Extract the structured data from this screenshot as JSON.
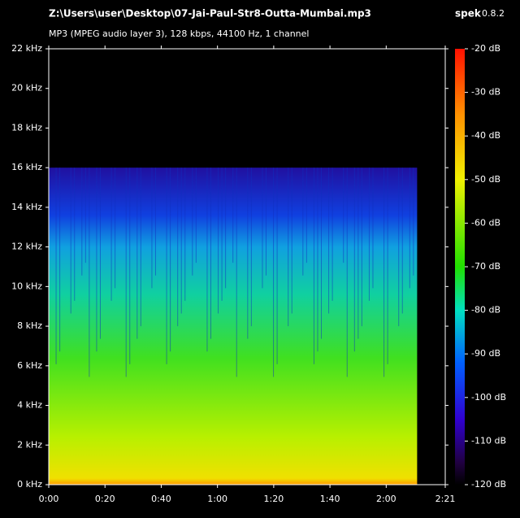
{
  "chart_data": {
    "type": "spectrogram",
    "title": "Z:\\Users\\user\\Desktop\\07-Jai-Paul-Str8-Outta-Mumbai.mp3",
    "subtitle": "MP3 (MPEG audio layer 3), 128 kbps, 44100 Hz, 1 channel",
    "app": "spek",
    "version": "0.8.2",
    "xlim": [
      0,
      141
    ],
    "xticks": [
      {
        "value": 0,
        "label": "0:00"
      },
      {
        "value": 20,
        "label": "0:20"
      },
      {
        "value": 40,
        "label": "0:40"
      },
      {
        "value": 60,
        "label": "1:00"
      },
      {
        "value": 80,
        "label": "1:20"
      },
      {
        "value": 100,
        "label": "1:40"
      },
      {
        "value": 120,
        "label": "2:00"
      },
      {
        "value": 141,
        "label": "2:21"
      }
    ],
    "ylim": [
      0,
      22
    ],
    "yticks": [
      {
        "value": 0,
        "label": "0 kHz"
      },
      {
        "value": 2,
        "label": "2 kHz"
      },
      {
        "value": 4,
        "label": "4 kHz"
      },
      {
        "value": 6,
        "label": "6 kHz"
      },
      {
        "value": 8,
        "label": "8 kHz"
      },
      {
        "value": 10,
        "label": "10 kHz"
      },
      {
        "value": 12,
        "label": "12 kHz"
      },
      {
        "value": 14,
        "label": "14 kHz"
      },
      {
        "value": 16,
        "label": "16 kHz"
      },
      {
        "value": 18,
        "label": "18 kHz"
      },
      {
        "value": 20,
        "label": "20 kHz"
      },
      {
        "value": 22,
        "label": "22 kHz"
      }
    ],
    "zlim": [
      -120,
      -20
    ],
    "zticks": [
      {
        "value": -20,
        "label": "-20 dB"
      },
      {
        "value": -30,
        "label": "-30 dB"
      },
      {
        "value": -40,
        "label": "-40 dB"
      },
      {
        "value": -50,
        "label": "-50 dB"
      },
      {
        "value": -60,
        "label": "-60 dB"
      },
      {
        "value": -70,
        "label": "-70 dB"
      },
      {
        "value": -80,
        "label": "-80 dB"
      },
      {
        "value": -90,
        "label": "-90 dB"
      },
      {
        "value": -100,
        "label": "-100 dB"
      },
      {
        "value": -110,
        "label": "-110 dB"
      },
      {
        "value": -120,
        "label": "-120 dB"
      }
    ],
    "signal": {
      "end": 131,
      "max_frequency": 16
    }
  }
}
